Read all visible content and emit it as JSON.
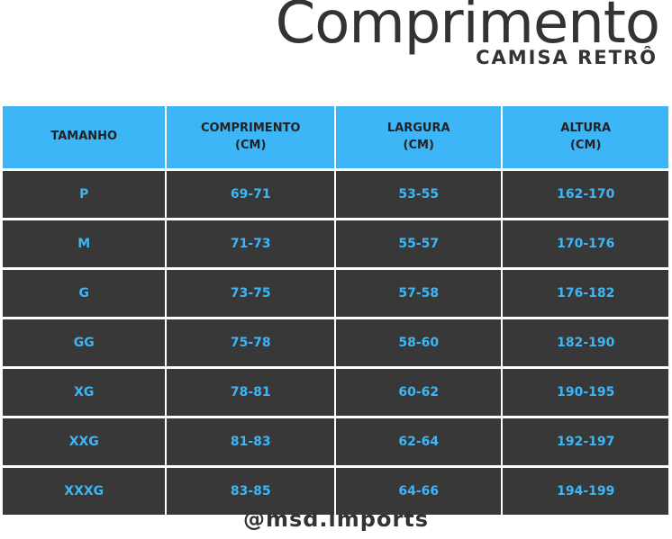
{
  "header": {
    "title": "Comprimento",
    "subtitle": "CAMISA RETRÔ"
  },
  "table": {
    "columns": [
      {
        "line1": "TAMANHO",
        "line2": ""
      },
      {
        "line1": "COMPRIMENTO",
        "line2": "(CM)"
      },
      {
        "line1": "LARGURA",
        "line2": "(CM)"
      },
      {
        "line1": "ALTURA",
        "line2": "(CM)"
      }
    ],
    "rows": [
      [
        "P",
        "69-71",
        "53-55",
        "162-170"
      ],
      [
        "M",
        "71-73",
        "55-57",
        "170-176"
      ],
      [
        "G",
        "73-75",
        "57-58",
        "176-182"
      ],
      [
        "GG",
        "75-78",
        "58-60",
        "182-190"
      ],
      [
        "XG",
        "78-81",
        "60-62",
        "190-195"
      ],
      [
        "XXG",
        "81-83",
        "62-64",
        "192-197"
      ],
      [
        "XXXG",
        "83-85",
        "64-66",
        "194-199"
      ]
    ]
  },
  "footer": {
    "handle": "@msd.imports"
  },
  "colors": {
    "header_bg": "#3cb6f7",
    "row_bg": "#383838",
    "value_text": "#3cb6f7",
    "title_text": "#333333"
  }
}
